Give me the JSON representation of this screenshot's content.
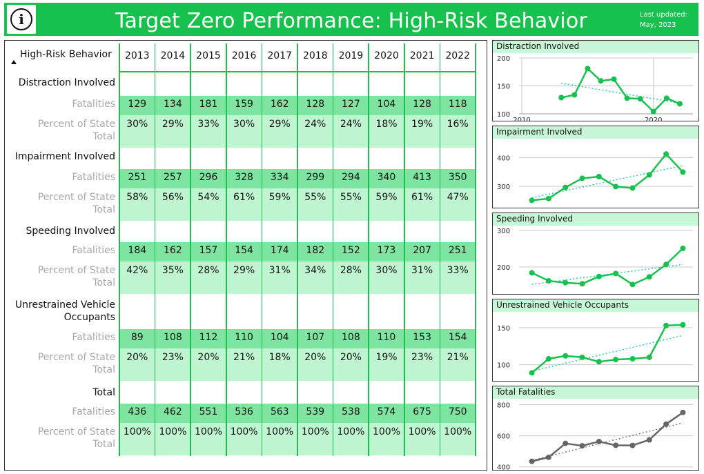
{
  "header": {
    "title": "Target Zero Performance: High-Risk Behavior",
    "updated_label": "Last updated:",
    "updated_date": "May, 2023",
    "info_icon": "info-icon",
    "info_glyph": "i",
    "accent": "#16c24d"
  },
  "table": {
    "corner_label": "High-Risk Behavior",
    "years": [
      "2013",
      "2014",
      "2015",
      "2016",
      "2017",
      "2018",
      "2019",
      "2020",
      "2021",
      "2022"
    ],
    "fatalities_label": "Fatalities",
    "percent_label_line1": "Percent of State",
    "percent_label_line2": "Total",
    "categories": [
      {
        "name_line1": "Distraction Involved",
        "name_line2": "",
        "fatalities": [
          "129",
          "134",
          "181",
          "159",
          "162",
          "128",
          "127",
          "104",
          "128",
          "118"
        ],
        "percent": [
          "30%",
          "29%",
          "33%",
          "30%",
          "29%",
          "24%",
          "24%",
          "18%",
          "19%",
          "16%"
        ]
      },
      {
        "name_line1": "Impairment Involved",
        "name_line2": "",
        "fatalities": [
          "251",
          "257",
          "296",
          "328",
          "334",
          "299",
          "294",
          "340",
          "413",
          "350"
        ],
        "percent": [
          "58%",
          "56%",
          "54%",
          "61%",
          "59%",
          "55%",
          "55%",
          "59%",
          "61%",
          "47%"
        ]
      },
      {
        "name_line1": "Speeding Involved",
        "name_line2": "",
        "fatalities": [
          "184",
          "162",
          "157",
          "154",
          "174",
          "182",
          "152",
          "173",
          "207",
          "251"
        ],
        "percent": [
          "42%",
          "35%",
          "28%",
          "29%",
          "31%",
          "34%",
          "28%",
          "30%",
          "31%",
          "33%"
        ]
      },
      {
        "name_line1": "Unrestrained Vehicle",
        "name_line2": "Occupants",
        "fatalities": [
          "89",
          "108",
          "112",
          "110",
          "104",
          "107",
          "108",
          "110",
          "153",
          "154"
        ],
        "percent": [
          "20%",
          "23%",
          "20%",
          "21%",
          "18%",
          "20%",
          "20%",
          "19%",
          "23%",
          "21%"
        ]
      },
      {
        "name_line1": "Total",
        "name_line2": "",
        "fatalities": [
          "436",
          "462",
          "551",
          "536",
          "563",
          "539",
          "538",
          "574",
          "675",
          "750"
        ],
        "percent": [
          "100%",
          "100%",
          "100%",
          "100%",
          "100%",
          "100%",
          "100%",
          "100%",
          "100%",
          "100%"
        ]
      }
    ]
  },
  "chart_data": [
    {
      "type": "line",
      "title": "Distraction Involved",
      "x": [
        2013,
        2014,
        2015,
        2016,
        2017,
        2018,
        2019,
        2020,
        2021,
        2022
      ],
      "series": [
        {
          "values": [
            129,
            134,
            181,
            159,
            162,
            128,
            127,
            104,
            128,
            118
          ],
          "color": "#16c24d"
        }
      ],
      "trendline": true,
      "ylim": [
        100,
        200
      ],
      "yticks": [
        100,
        150,
        200
      ],
      "xlim": [
        2010,
        2023
      ],
      "xticks": [
        2010,
        2020
      ],
      "grid": true
    },
    {
      "type": "line",
      "title": "Impairment Involved",
      "x": [
        2013,
        2014,
        2015,
        2016,
        2017,
        2018,
        2019,
        2020,
        2021,
        2022
      ],
      "series": [
        {
          "values": [
            251,
            257,
            296,
            328,
            334,
            299,
            294,
            340,
            413,
            350
          ],
          "color": "#16c24d"
        }
      ],
      "trendline": true,
      "ylim": [
        230,
        450
      ],
      "yticks": [
        300,
        400
      ],
      "xlim": [
        2012.4,
        2022.6
      ],
      "xticks": [],
      "grid": true
    },
    {
      "type": "line",
      "title": "Speeding Involved",
      "x": [
        2013,
        2014,
        2015,
        2016,
        2017,
        2018,
        2019,
        2020,
        2021,
        2022
      ],
      "series": [
        {
          "values": [
            184,
            162,
            157,
            154,
            174,
            182,
            152,
            173,
            207,
            251
          ],
          "color": "#16c24d"
        }
      ],
      "trendline": true,
      "ylim": [
        130,
        300
      ],
      "yticks": [
        200,
        300
      ],
      "xlim": [
        2012.4,
        2022.6
      ],
      "xticks": [],
      "grid": true
    },
    {
      "type": "line",
      "title": "Unrestrained Vehicle Occupants",
      "x": [
        2013,
        2014,
        2015,
        2016,
        2017,
        2018,
        2019,
        2020,
        2021,
        2022
      ],
      "series": [
        {
          "values": [
            89,
            108,
            112,
            110,
            104,
            107,
            108,
            110,
            153,
            154
          ],
          "color": "#16c24d"
        }
      ],
      "trendline": true,
      "ylim": [
        80,
        165
      ],
      "yticks": [
        100,
        150
      ],
      "xlim": [
        2012.4,
        2022.6
      ],
      "xticks": [],
      "grid": true
    },
    {
      "type": "line",
      "title": "Total Fatalities",
      "x": [
        2013,
        2014,
        2015,
        2016,
        2017,
        2018,
        2019,
        2020,
        2021,
        2022
      ],
      "series": [
        {
          "values": [
            436,
            462,
            551,
            536,
            563,
            539,
            538,
            574,
            675,
            750
          ],
          "color": "#666666"
        }
      ],
      "trendline": true,
      "ylim": [
        390,
        820
      ],
      "yticks": [
        400,
        600,
        800
      ],
      "xlim": [
        2012.4,
        2022.6
      ],
      "xticks": [],
      "grid": true
    }
  ]
}
